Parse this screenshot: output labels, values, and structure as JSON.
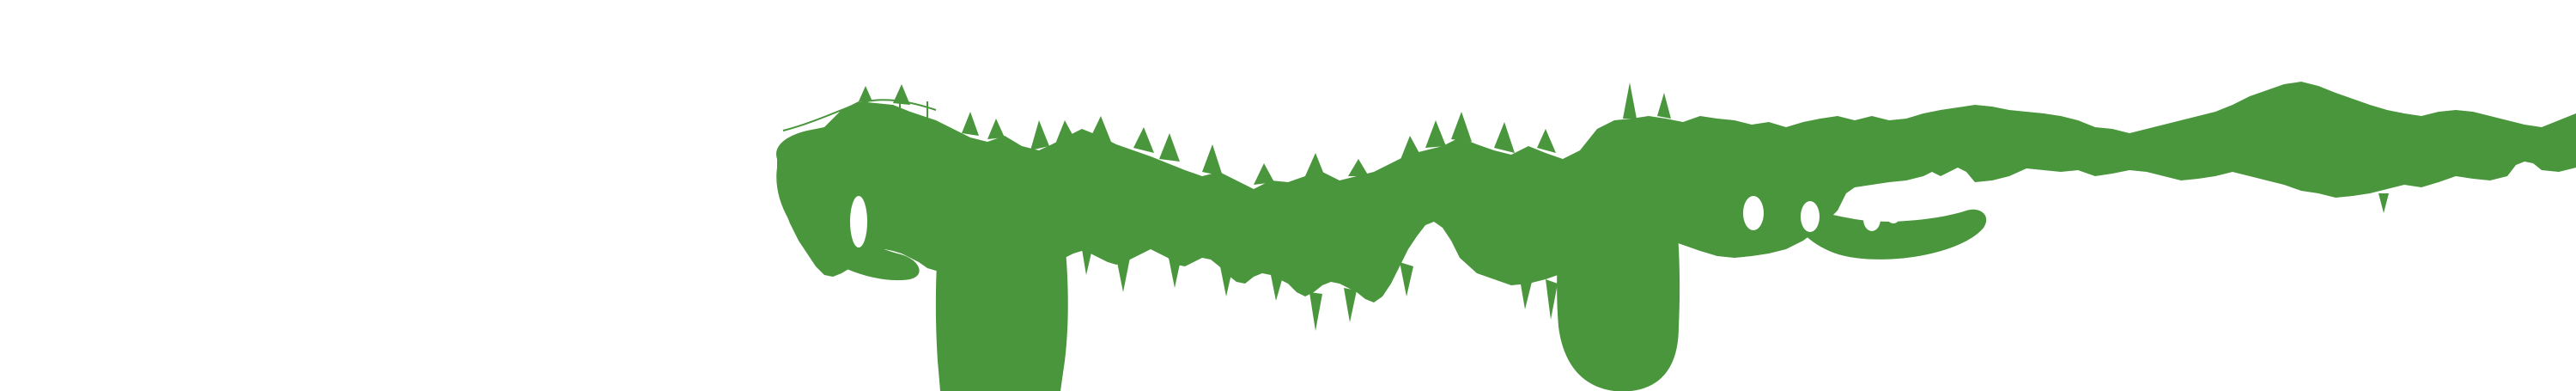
{
  "scene": {
    "description_label": "",
    "colors": {
      "background": "#ffffff",
      "forest_green": "#4a963c",
      "forest_green_light": "#5aa64a"
    }
  }
}
